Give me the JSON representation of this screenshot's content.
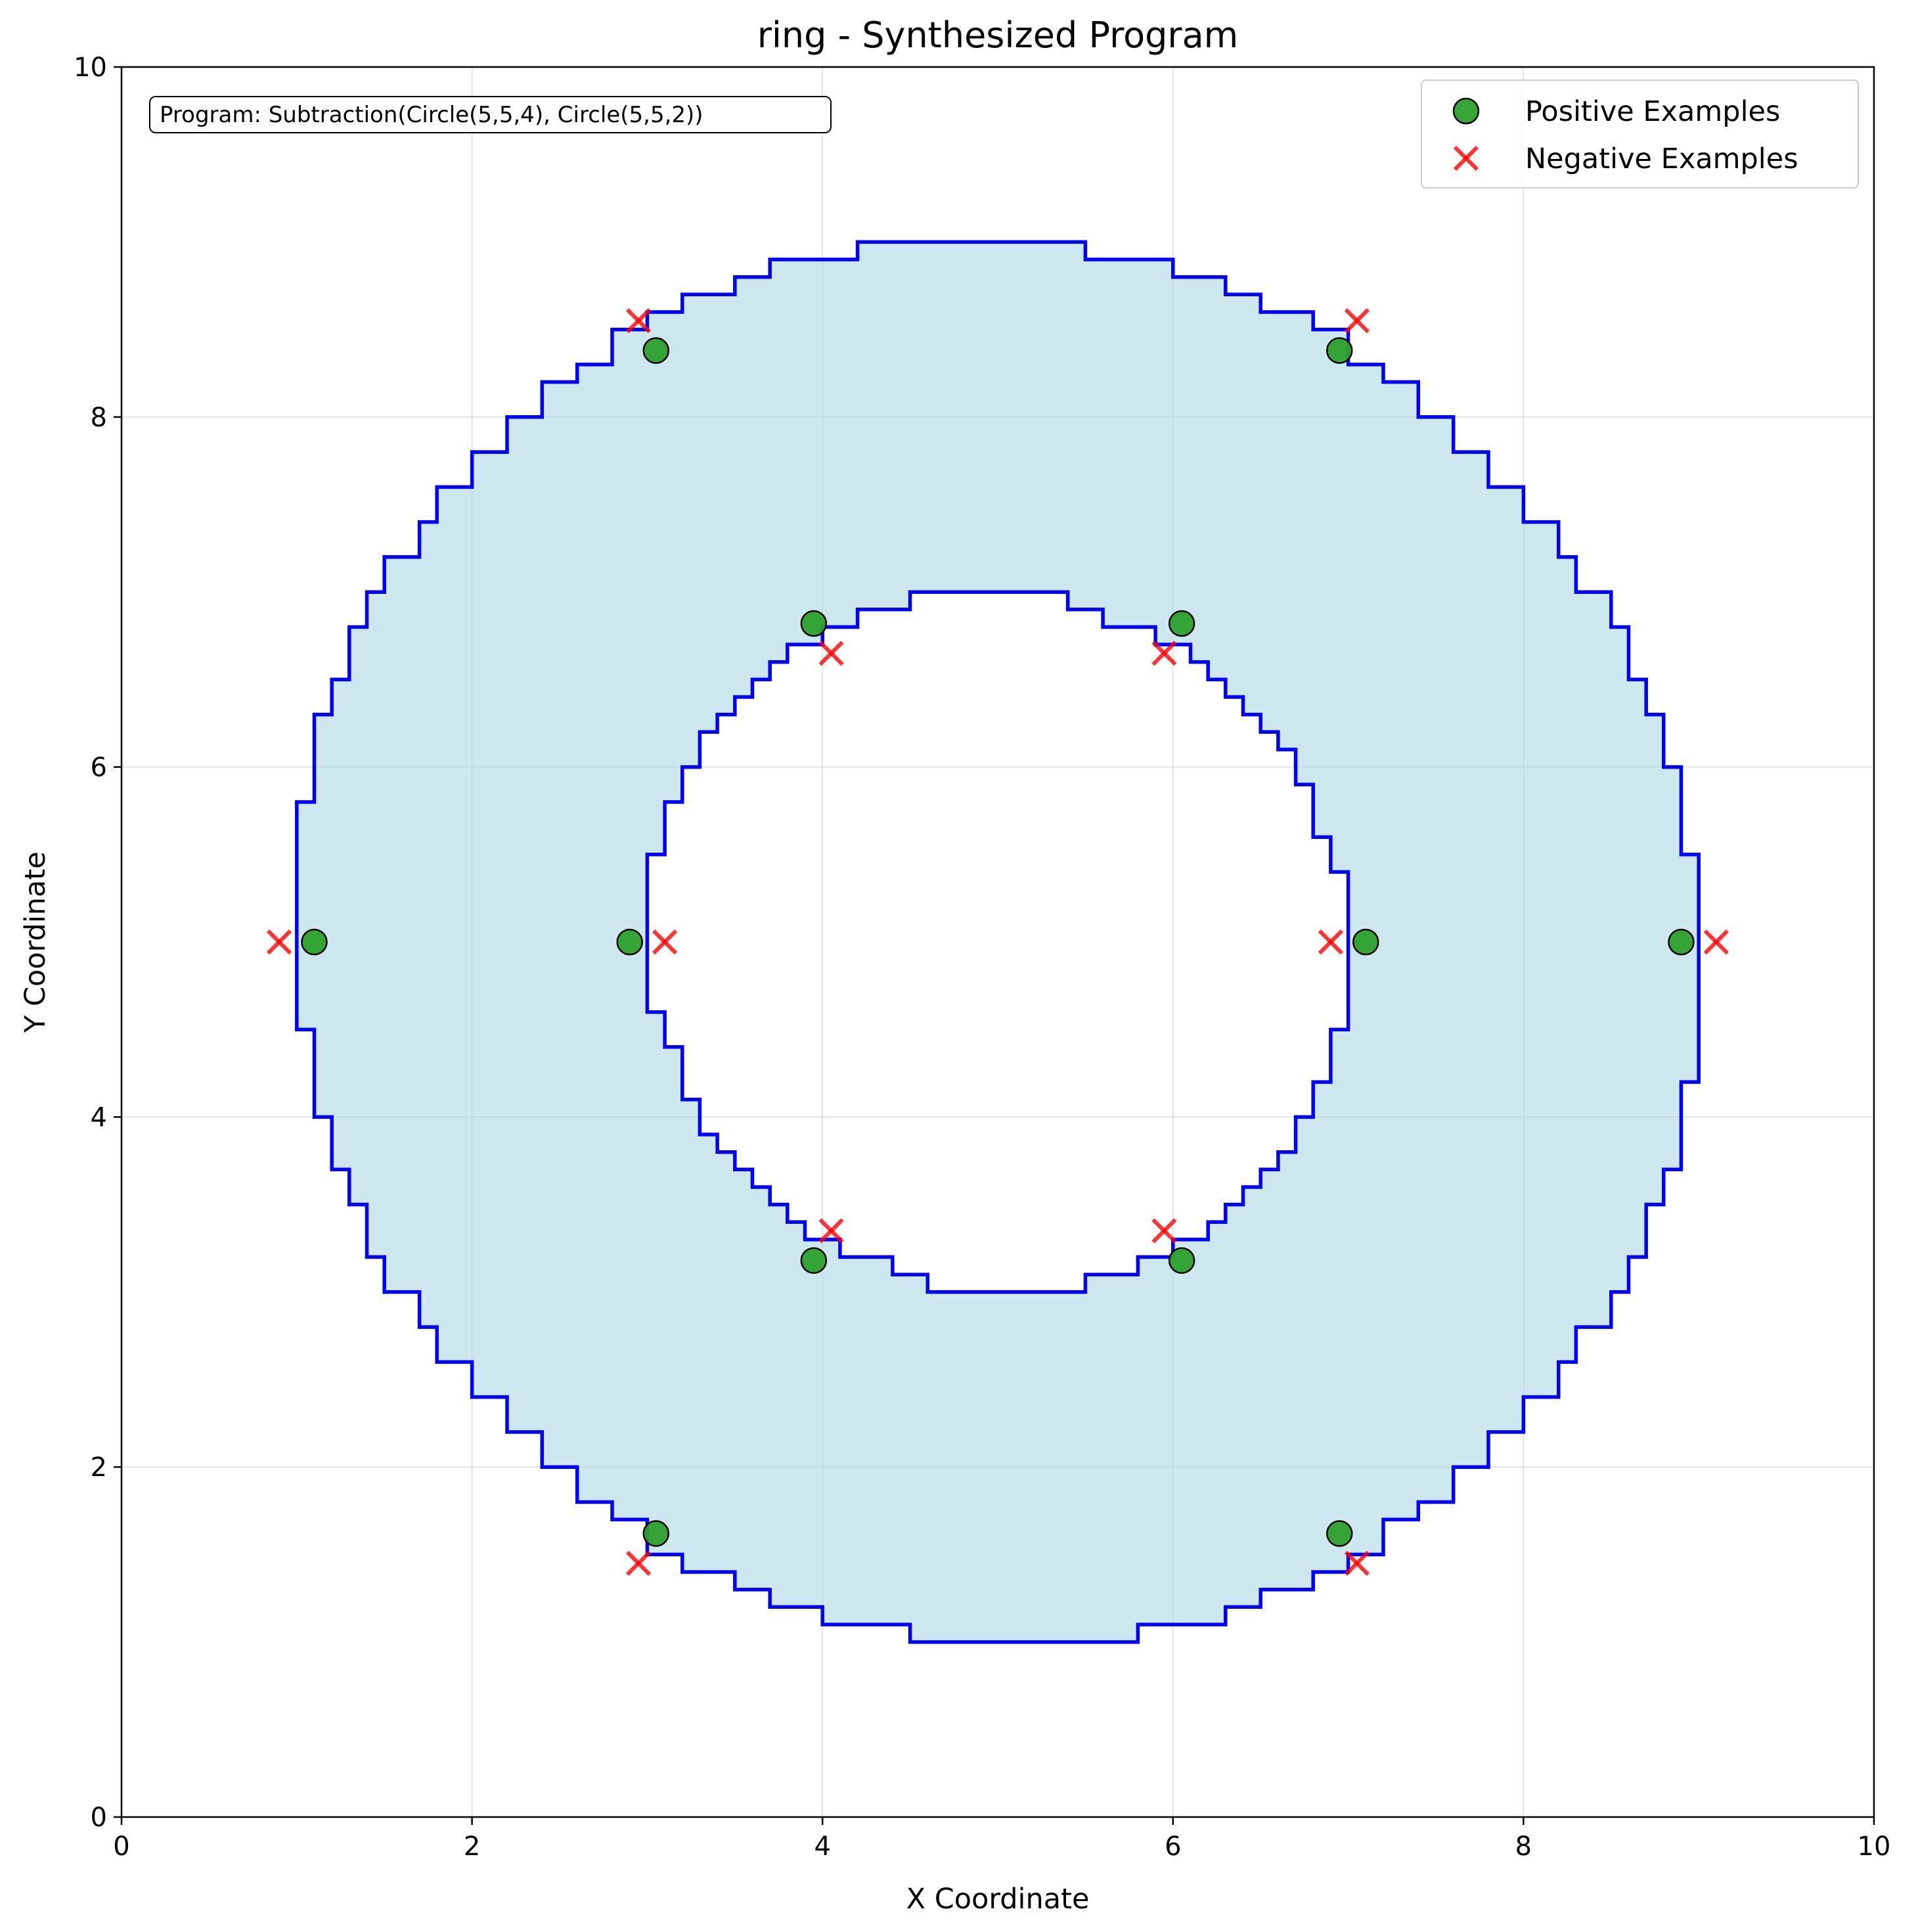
{
  "chart_data": {
    "type": "scatter",
    "title": "ring - Synthesized Program",
    "xlabel": "X Coordinate",
    "ylabel": "Y Coordinate",
    "xlim": [
      0,
      10
    ],
    "ylim": [
      0,
      10
    ],
    "xticks": [
      "0",
      "2",
      "4",
      "6",
      "8",
      "10"
    ],
    "yticks": [
      "0",
      "2",
      "4",
      "6",
      "8",
      "10"
    ],
    "grid": true,
    "legend_position": "top-right",
    "program_label": "Program: Subtraction(Circle(5,5,4), Circle(5,5,2))",
    "region": {
      "shape": "ring",
      "center": [
        5,
        5
      ],
      "outer_radius": 4,
      "inner_radius": 2,
      "fill_color": "#add8e6",
      "edge_color": "#0000ff"
    },
    "series": [
      {
        "name": "Positive Examples",
        "marker": "circle",
        "color": "#2ca02c",
        "points": [
          [
            1.1,
            5.0
          ],
          [
            8.9,
            5.0
          ],
          [
            3.05,
            8.38
          ],
          [
            6.95,
            8.38
          ],
          [
            3.05,
            1.62
          ],
          [
            6.95,
            1.62
          ],
          [
            2.9,
            5.0
          ],
          [
            7.1,
            5.0
          ],
          [
            3.95,
            6.82
          ],
          [
            6.05,
            6.82
          ],
          [
            3.95,
            3.18
          ],
          [
            6.05,
            3.18
          ]
        ]
      },
      {
        "name": "Negative Examples",
        "marker": "x",
        "color": "#ff0000",
        "points": [
          [
            0.9,
            5.0
          ],
          [
            9.1,
            5.0
          ],
          [
            2.95,
            8.55
          ],
          [
            7.05,
            8.55
          ],
          [
            2.95,
            1.45
          ],
          [
            7.05,
            1.45
          ],
          [
            3.1,
            5.0
          ],
          [
            6.9,
            5.0
          ],
          [
            4.05,
            6.65
          ],
          [
            5.95,
            6.65
          ],
          [
            4.05,
            3.35
          ],
          [
            5.95,
            3.35
          ]
        ]
      }
    ]
  }
}
